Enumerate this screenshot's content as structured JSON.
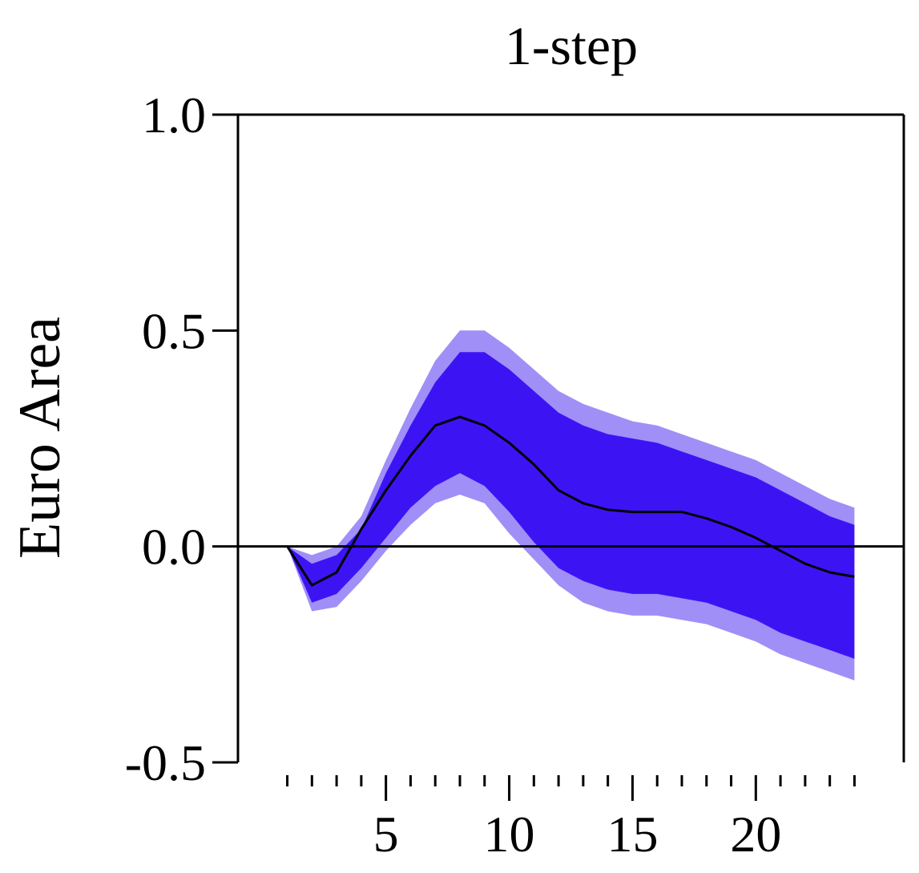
{
  "chart_data": {
    "type": "area",
    "title": "1-step",
    "xlabel": "",
    "ylabel": "Euro Area",
    "xlim": [
      -1,
      26
    ],
    "ylim": [
      -0.5,
      1.0
    ],
    "x_ticks_major": [
      5,
      10,
      15,
      20
    ],
    "x_ticks_minor": [
      1,
      2,
      3,
      4,
      6,
      7,
      8,
      9,
      11,
      12,
      13,
      14,
      16,
      17,
      18,
      19,
      21,
      22,
      23,
      24
    ],
    "y_ticks": [
      {
        "value": -0.5,
        "label": "-0.5"
      },
      {
        "value": 0.0,
        "label": "0.0"
      },
      {
        "value": 0.5,
        "label": "0.5"
      },
      {
        "value": 1.0,
        "label": "1.0"
      }
    ],
    "zero_line": true,
    "grid": false,
    "colors": {
      "outer_band": "#9f8ff7",
      "inner_band": "#3c14f4",
      "median": "#000000",
      "axis": "#000000"
    },
    "x": [
      1,
      2,
      3,
      4,
      5,
      6,
      7,
      8,
      9,
      10,
      11,
      12,
      13,
      14,
      15,
      16,
      17,
      18,
      19,
      20,
      21,
      22,
      23,
      24
    ],
    "series": [
      {
        "role": "outer_upper",
        "values": [
          0.0,
          -0.02,
          0.0,
          0.07,
          0.2,
          0.32,
          0.43,
          0.5,
          0.5,
          0.46,
          0.41,
          0.36,
          0.33,
          0.31,
          0.29,
          0.28,
          0.26,
          0.24,
          0.22,
          0.2,
          0.17,
          0.14,
          0.11,
          0.09
        ]
      },
      {
        "role": "inner_upper",
        "values": [
          0.0,
          -0.04,
          -0.02,
          0.04,
          0.17,
          0.28,
          0.38,
          0.45,
          0.45,
          0.41,
          0.36,
          0.31,
          0.28,
          0.26,
          0.25,
          0.24,
          0.22,
          0.2,
          0.18,
          0.16,
          0.13,
          0.1,
          0.07,
          0.05
        ]
      },
      {
        "role": "median",
        "values": [
          0.0,
          -0.09,
          -0.06,
          0.04,
          0.13,
          0.21,
          0.28,
          0.3,
          0.28,
          0.24,
          0.19,
          0.13,
          0.1,
          0.085,
          0.08,
          0.08,
          0.08,
          0.065,
          0.045,
          0.02,
          -0.01,
          -0.04,
          -0.06,
          -0.07
        ]
      },
      {
        "role": "inner_lower",
        "values": [
          0.0,
          -0.13,
          -0.11,
          -0.05,
          0.02,
          0.09,
          0.14,
          0.17,
          0.14,
          0.08,
          0.01,
          -0.05,
          -0.08,
          -0.1,
          -0.11,
          -0.11,
          -0.12,
          -0.13,
          -0.15,
          -0.17,
          -0.2,
          -0.22,
          -0.24,
          -0.26
        ]
      },
      {
        "role": "outer_lower",
        "values": [
          0.0,
          -0.15,
          -0.14,
          -0.08,
          -0.01,
          0.05,
          0.1,
          0.12,
          0.1,
          0.03,
          -0.03,
          -0.09,
          -0.13,
          -0.15,
          -0.16,
          -0.16,
          -0.17,
          -0.18,
          -0.2,
          -0.22,
          -0.25,
          -0.27,
          -0.29,
          -0.31
        ]
      }
    ]
  }
}
